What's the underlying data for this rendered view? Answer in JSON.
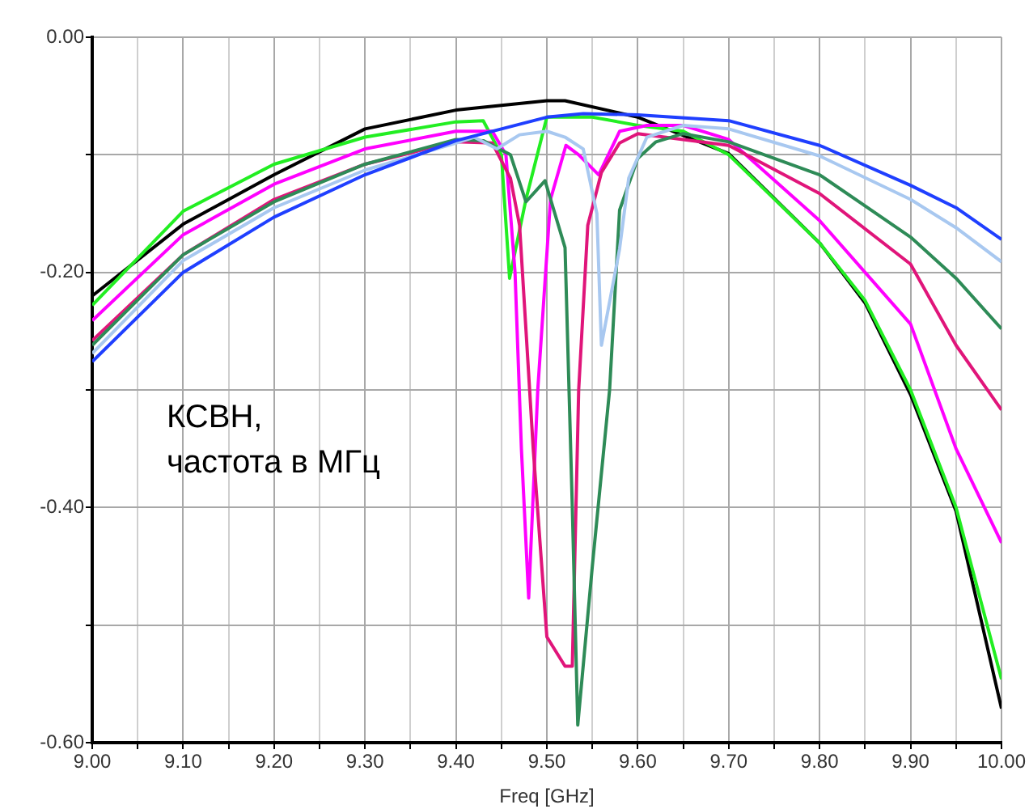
{
  "chart_data": {
    "type": "line",
    "xlabel": "Freq [GHz]",
    "annotations": [
      "КСВН,\nчастота в МГц"
    ],
    "xlim": [
      9.0,
      10.0
    ],
    "xticks": [
      {
        "value": 9.0,
        "label": "9.00"
      },
      {
        "value": 9.05,
        "label": null
      },
      {
        "value": 9.1,
        "label": "9.10"
      },
      {
        "value": 9.15,
        "label": null
      },
      {
        "value": 9.2,
        "label": "9.20"
      },
      {
        "value": 9.25,
        "label": null
      },
      {
        "value": 9.3,
        "label": "9.30"
      },
      {
        "value": 9.35,
        "label": null
      },
      {
        "value": 9.4,
        "label": "9.40"
      },
      {
        "value": 9.45,
        "label": null
      },
      {
        "value": 9.5,
        "label": "9.50"
      },
      {
        "value": 9.55,
        "label": null
      },
      {
        "value": 9.6,
        "label": "9.60"
      },
      {
        "value": 9.65,
        "label": null
      },
      {
        "value": 9.7,
        "label": "9.70"
      },
      {
        "value": 9.75,
        "label": null
      },
      {
        "value": 9.8,
        "label": "9.80"
      },
      {
        "value": 9.85,
        "label": null
      },
      {
        "value": 9.9,
        "label": "9.90"
      },
      {
        "value": 9.95,
        "label": null
      },
      {
        "value": 10.0,
        "label": "10.00"
      }
    ],
    "ylim": [
      -0.6,
      0.0
    ],
    "yticks": [
      {
        "value": 0.0,
        "label": "0.00"
      },
      {
        "value": -0.1,
        "label": null
      },
      {
        "value": -0.2,
        "label": "-0.20"
      },
      {
        "value": -0.3,
        "label": null
      },
      {
        "value": -0.4,
        "label": "-0.40"
      },
      {
        "value": -0.5,
        "label": null
      },
      {
        "value": -0.6,
        "label": "-0.60"
      }
    ],
    "grid": true,
    "legend": false,
    "marker": "none",
    "line_style": "solid",
    "series": [
      {
        "color": "#1f3fff",
        "x": [
          9.0,
          9.1,
          9.2,
          9.3,
          9.4,
          9.45,
          9.5,
          9.54,
          9.6,
          9.7,
          9.8,
          9.9,
          9.95,
          10.0
        ],
        "values": [
          -0.276,
          -0.2,
          -0.153,
          -0.117,
          -0.088,
          -0.078,
          -0.068,
          -0.065,
          -0.066,
          -0.071,
          -0.092,
          -0.126,
          -0.145,
          -0.172
        ]
      },
      {
        "color": "#a8c8f0",
        "x": [
          9.0,
          9.1,
          9.2,
          9.3,
          9.4,
          9.42,
          9.445,
          9.47,
          9.5,
          9.52,
          9.54,
          9.555,
          9.56,
          9.58,
          9.59,
          9.61,
          9.65,
          9.7,
          9.8,
          9.9,
          9.95,
          10.0
        ],
        "values": [
          -0.269,
          -0.19,
          -0.145,
          -0.113,
          -0.09,
          -0.085,
          -0.095,
          -0.083,
          -0.08,
          -0.085,
          -0.095,
          -0.15,
          -0.262,
          -0.18,
          -0.12,
          -0.085,
          -0.075,
          -0.078,
          -0.101,
          -0.138,
          -0.162,
          -0.191
        ]
      },
      {
        "color": "#2e8b57",
        "x": [
          9.0,
          9.1,
          9.2,
          9.3,
          9.4,
          9.43,
          9.46,
          9.477,
          9.498,
          9.52,
          9.528,
          9.534,
          9.55,
          9.569,
          9.58,
          9.6,
          9.62,
          9.65,
          9.7,
          9.8,
          9.9,
          9.95,
          10.0
        ],
        "values": [
          -0.262,
          -0.185,
          -0.14,
          -0.108,
          -0.087,
          -0.088,
          -0.1,
          -0.14,
          -0.122,
          -0.179,
          -0.4,
          -0.585,
          -0.45,
          -0.3,
          -0.147,
          -0.103,
          -0.089,
          -0.082,
          -0.089,
          -0.117,
          -0.17,
          -0.205,
          -0.248
        ]
      },
      {
        "color": "#e0157a",
        "x": [
          9.0,
          9.1,
          9.2,
          9.3,
          9.4,
          9.44,
          9.46,
          9.47,
          9.485,
          9.5,
          9.52,
          9.528,
          9.535,
          9.545,
          9.56,
          9.58,
          9.6,
          9.7,
          9.8,
          9.9,
          9.95,
          10.0
        ],
        "values": [
          -0.258,
          -0.185,
          -0.138,
          -0.108,
          -0.089,
          -0.09,
          -0.12,
          -0.16,
          -0.35,
          -0.51,
          -0.535,
          -0.535,
          -0.3,
          -0.16,
          -0.115,
          -0.09,
          -0.082,
          -0.092,
          -0.133,
          -0.193,
          -0.262,
          -0.317
        ]
      },
      {
        "color": "#ff00ff",
        "x": [
          9.0,
          9.1,
          9.2,
          9.3,
          9.4,
          9.44,
          9.455,
          9.465,
          9.472,
          9.48,
          9.49,
          9.504,
          9.521,
          9.535,
          9.557,
          9.58,
          9.61,
          9.65,
          9.7,
          9.8,
          9.9,
          9.95,
          10.0
        ],
        "values": [
          -0.241,
          -0.168,
          -0.125,
          -0.095,
          -0.08,
          -0.08,
          -0.1,
          -0.2,
          -0.35,
          -0.477,
          -0.3,
          -0.138,
          -0.092,
          -0.1,
          -0.117,
          -0.08,
          -0.075,
          -0.075,
          -0.087,
          -0.156,
          -0.244,
          -0.35,
          -0.43
        ]
      },
      {
        "color": "#22ee22",
        "x": [
          9.0,
          9.1,
          9.2,
          9.3,
          9.4,
          9.43,
          9.45,
          9.459,
          9.477,
          9.5,
          9.55,
          9.6,
          9.65,
          9.7,
          9.8,
          9.85,
          9.9,
          9.95,
          10.0
        ],
        "values": [
          -0.228,
          -0.148,
          -0.108,
          -0.085,
          -0.072,
          -0.071,
          -0.1,
          -0.205,
          -0.138,
          -0.068,
          -0.068,
          -0.075,
          -0.08,
          -0.1,
          -0.175,
          -0.224,
          -0.3,
          -0.4,
          -0.546
        ]
      },
      {
        "color": "#000000",
        "x": [
          9.0,
          9.1,
          9.2,
          9.3,
          9.4,
          9.5,
          9.52,
          9.6,
          9.7,
          9.8,
          9.85,
          9.9,
          9.95,
          10.0
        ],
        "values": [
          -0.22,
          -0.159,
          -0.117,
          -0.078,
          -0.062,
          -0.054,
          -0.054,
          -0.068,
          -0.099,
          -0.175,
          -0.226,
          -0.304,
          -0.403,
          -0.571
        ]
      }
    ]
  }
}
